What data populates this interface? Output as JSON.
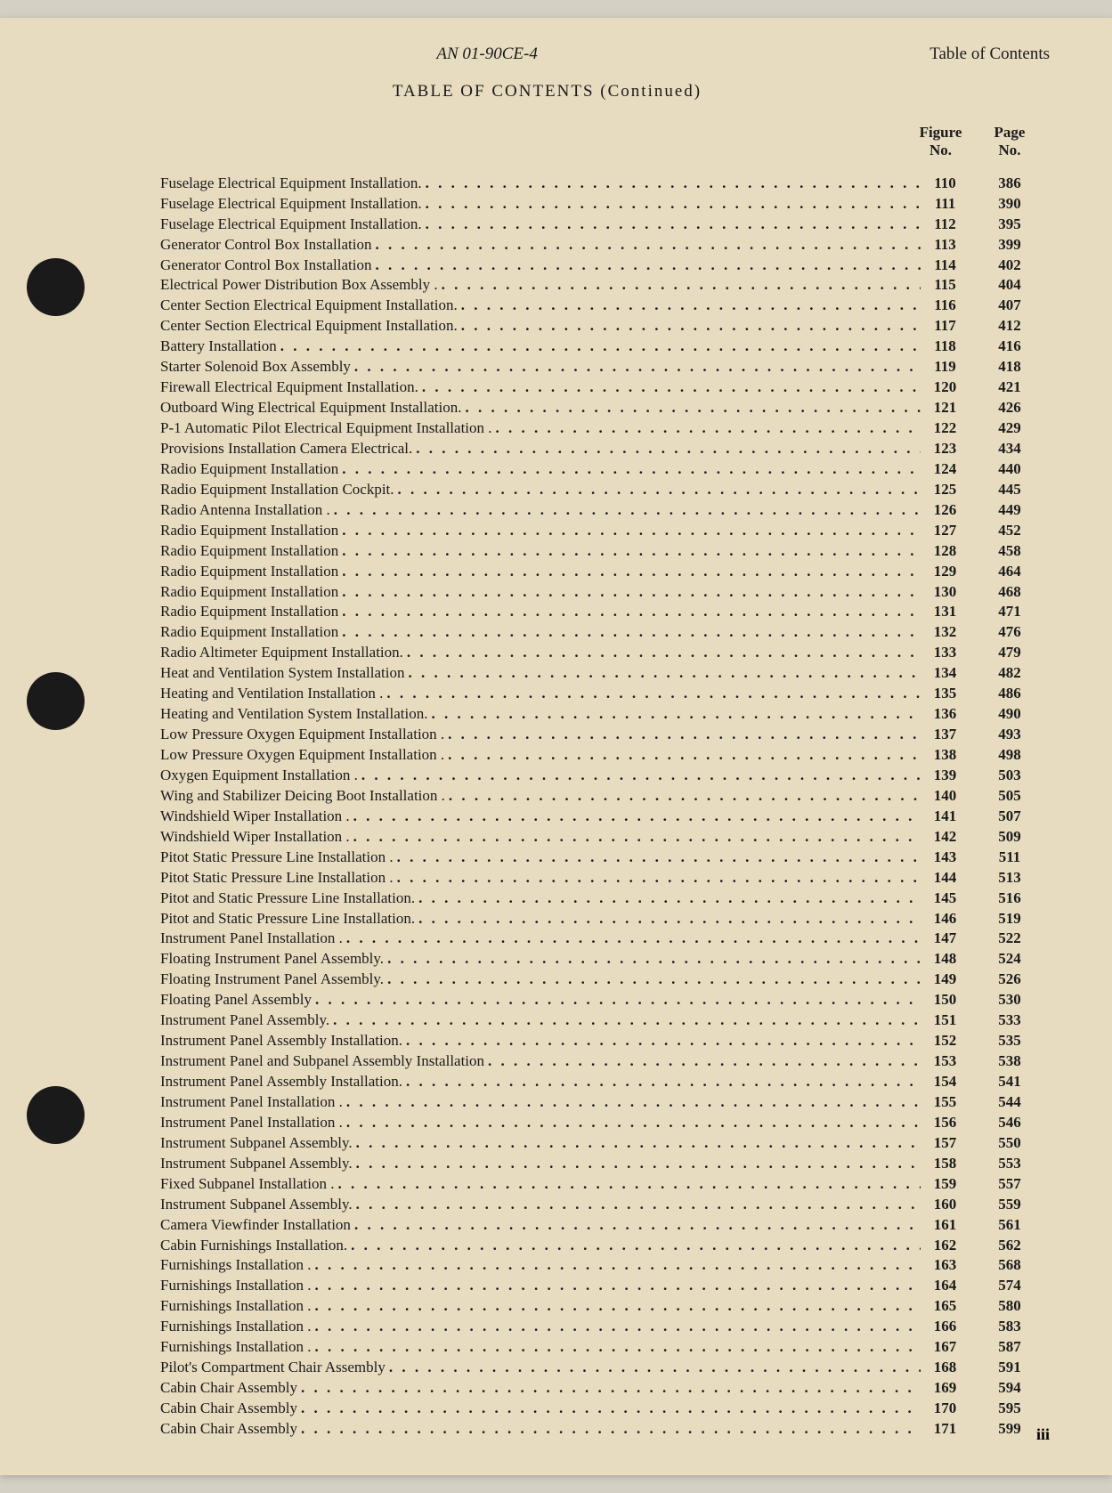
{
  "document_code": "AN 01-90CE-4",
  "header_right": "Table of Contents",
  "toc_heading": "TABLE OF CONTENTS (Continued)",
  "column_headers": {
    "figure": "Figure\nNo.",
    "page": "Page\nNo."
  },
  "page_number": "iii",
  "hole_positions": [
    270,
    735,
    1200
  ],
  "entries": [
    {
      "title": "Fuselage Electrical Equipment Installation.",
      "fig": "110",
      "page": "386"
    },
    {
      "title": "Fuselage Electrical Equipment Installation.",
      "fig": "111",
      "page": "390"
    },
    {
      "title": "Fuselage Electrical Equipment Installation.",
      "fig": "112",
      "page": "395"
    },
    {
      "title": "Generator Control Box Installation",
      "fig": "113",
      "page": "399"
    },
    {
      "title": "Generator Control Box Installation",
      "fig": "114",
      "page": "402"
    },
    {
      "title": "Electrical Power Distribution Box Assembly .",
      "fig": "115",
      "page": "404"
    },
    {
      "title": "Center Section Electrical Equipment Installation.",
      "fig": "116",
      "page": "407"
    },
    {
      "title": "Center Section Electrical Equipment Installation.",
      "fig": "117",
      "page": "412"
    },
    {
      "title": "Battery Installation",
      "fig": "118",
      "page": "416"
    },
    {
      "title": "Starter Solenoid Box Assembly",
      "fig": "119",
      "page": "418"
    },
    {
      "title": "Firewall Electrical Equipment Installation.",
      "fig": "120",
      "page": "421"
    },
    {
      "title": "Outboard Wing Electrical Equipment Installation.",
      "fig": "121",
      "page": "426"
    },
    {
      "title": "P-1 Automatic Pilot Electrical Equipment Installation .",
      "fig": "122",
      "page": "429"
    },
    {
      "title": "Provisions Installation Camera Electrical.",
      "fig": "123",
      "page": "434"
    },
    {
      "title": "Radio Equipment Installation",
      "fig": "124",
      "page": "440"
    },
    {
      "title": "Radio Equipment Installation Cockpit.",
      "fig": "125",
      "page": "445"
    },
    {
      "title": "Radio Antenna Installation .",
      "fig": "126",
      "page": "449"
    },
    {
      "title": "Radio Equipment Installation",
      "fig": "127",
      "page": "452"
    },
    {
      "title": "Radio Equipment Installation",
      "fig": "128",
      "page": "458"
    },
    {
      "title": "Radio Equipment Installation",
      "fig": "129",
      "page": "464"
    },
    {
      "title": "Radio Equipment Installation",
      "fig": "130",
      "page": "468"
    },
    {
      "title": "Radio Equipment Installation",
      "fig": "131",
      "page": "471"
    },
    {
      "title": "Radio Equipment Installation",
      "fig": "132",
      "page": "476"
    },
    {
      "title": "Radio Altimeter Equipment Installation.",
      "fig": "133",
      "page": "479"
    },
    {
      "title": "Heat and Ventilation System Installation",
      "fig": "134",
      "page": "482"
    },
    {
      "title": "Heating and Ventilation Installation .",
      "fig": "135",
      "page": "486"
    },
    {
      "title": "Heating and Ventilation System Installation.",
      "fig": "136",
      "page": "490"
    },
    {
      "title": "Low Pressure Oxygen Equipment Installation .",
      "fig": "137",
      "page": "493"
    },
    {
      "title": "Low Pressure Oxygen Equipment Installation .",
      "fig": "138",
      "page": "498"
    },
    {
      "title": "Oxygen Equipment Installation .",
      "fig": "139",
      "page": "503"
    },
    {
      "title": "Wing and Stabilizer Deicing Boot Installation .",
      "fig": "140",
      "page": "505"
    },
    {
      "title": "Windshield Wiper Installation .",
      "fig": "141",
      "page": "507"
    },
    {
      "title": "Windshield Wiper Installation .",
      "fig": "142",
      "page": "509"
    },
    {
      "title": "Pitot Static Pressure Line Installation .",
      "fig": "143",
      "page": "511"
    },
    {
      "title": "Pitot Static Pressure Line Installation .",
      "fig": "144",
      "page": "513"
    },
    {
      "title": "Pitot and Static Pressure Line Installation.",
      "fig": "145",
      "page": "516"
    },
    {
      "title": "Pitot and Static Pressure Line Installation.",
      "fig": "146",
      "page": "519"
    },
    {
      "title": "Instrument Panel Installation .",
      "fig": "147",
      "page": "522"
    },
    {
      "title": "Floating Instrument Panel Assembly.",
      "fig": "148",
      "page": "524"
    },
    {
      "title": "Floating Instrument Panel Assembly.",
      "fig": "149",
      "page": "526"
    },
    {
      "title": "Floating Panel Assembly",
      "fig": "150",
      "page": "530"
    },
    {
      "title": "Instrument Panel Assembly.",
      "fig": "151",
      "page": "533"
    },
    {
      "title": "Instrument Panel Assembly Installation.",
      "fig": "152",
      "page": "535"
    },
    {
      "title": "Instrument Panel and Subpanel Assembly Installation",
      "fig": "153",
      "page": "538"
    },
    {
      "title": "Instrument Panel Assembly Installation.",
      "fig": "154",
      "page": "541"
    },
    {
      "title": "Instrument Panel Installation .",
      "fig": "155",
      "page": "544"
    },
    {
      "title": "Instrument Panel Installation .",
      "fig": "156",
      "page": "546"
    },
    {
      "title": "Instrument Subpanel Assembly.",
      "fig": "157",
      "page": "550"
    },
    {
      "title": "Instrument Subpanel Assembly.",
      "fig": "158",
      "page": "553"
    },
    {
      "title": "Fixed Subpanel Installation .",
      "fig": "159",
      "page": "557"
    },
    {
      "title": "Instrument Subpanel Assembly.",
      "fig": "160",
      "page": "559"
    },
    {
      "title": "Camera Viewfinder Installation",
      "fig": "161",
      "page": "561"
    },
    {
      "title": "Cabin Furnishings Installation.",
      "fig": "162",
      "page": "562"
    },
    {
      "title": "Furnishings Installation .",
      "fig": "163",
      "page": "568"
    },
    {
      "title": "Furnishings Installation .",
      "fig": "164",
      "page": "574"
    },
    {
      "title": "Furnishings Installation .",
      "fig": "165",
      "page": "580"
    },
    {
      "title": "Furnishings Installation .",
      "fig": "166",
      "page": "583"
    },
    {
      "title": "Furnishings Installation .",
      "fig": "167",
      "page": "587"
    },
    {
      "title": "Pilot's Compartment Chair Assembly",
      "fig": "168",
      "page": "591"
    },
    {
      "title": "Cabin Chair Assembly",
      "fig": "169",
      "page": "594"
    },
    {
      "title": "Cabin Chair Assembly",
      "fig": "170",
      "page": "595"
    },
    {
      "title": "Cabin Chair Assembly",
      "fig": "171",
      "page": "599"
    }
  ]
}
